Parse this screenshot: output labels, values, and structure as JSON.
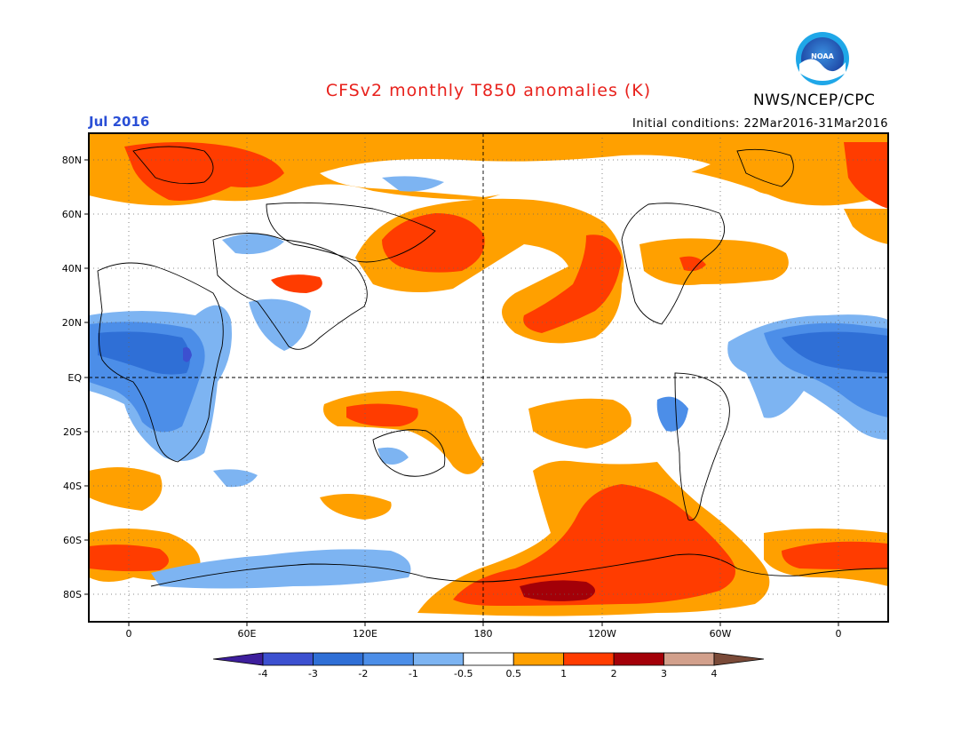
{
  "title": "CFSv2 monthly T850 anomalies (K)",
  "organization": "NWS/NCEP/CPC",
  "logo_text": "NOAA",
  "period": "Jul 2016",
  "initial_conditions": "Initial conditions: 22Mar2016-31Mar2016",
  "lat_labels": [
    "80N",
    "60N",
    "40N",
    "20N",
    "EQ",
    "20S",
    "40S",
    "60S",
    "80S"
  ],
  "lon_labels": [
    "0",
    "60E",
    "120E",
    "180",
    "120W",
    "60W",
    "0"
  ],
  "colorbar": {
    "labels": [
      "-4",
      "-3",
      "-2",
      "-1",
      "-0.5",
      "0.5",
      "1",
      "2",
      "3",
      "4"
    ],
    "colors": [
      "#3d1e9c",
      "#3c50d0",
      "#2f6fd6",
      "#4c8ee8",
      "#7db4f2",
      "#ffffff",
      "#ffa000",
      "#ff3c00",
      "#a30008",
      "#d2a08c",
      "#7a4a38"
    ]
  },
  "colors": {
    "land_outline": "#000000",
    "grid": "#555555",
    "title": "#e8211c",
    "period": "#2a4fd6"
  }
}
